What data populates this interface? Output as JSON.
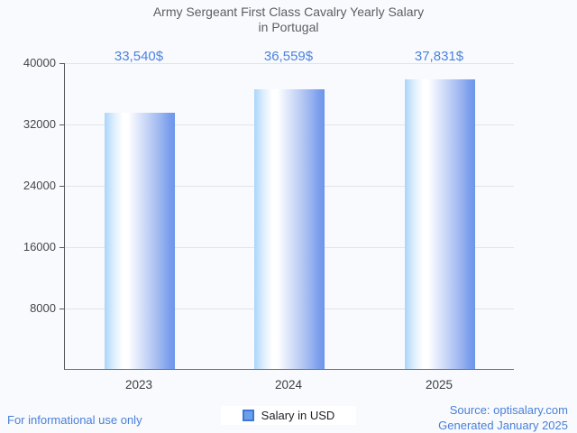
{
  "header": {
    "title_line1": "Army Sergeant First Class Cavalry Yearly Salary",
    "title_line2": "in Portugal"
  },
  "chart_data": {
    "type": "bar",
    "title": "Army Sergeant First Class Cavalry Yearly Salary in Portugal",
    "categories": [
      "2023",
      "2024",
      "2025"
    ],
    "values": [
      33540,
      36559,
      37831
    ],
    "value_labels": [
      "33,540$",
      "36,559$",
      "37,831$"
    ],
    "series_name": "Salary in USD",
    "xlabel": "",
    "ylabel": "",
    "ylim": [
      0,
      40000
    ],
    "yticks": [
      "40000",
      "32000",
      "24000",
      "16000",
      "8000"
    ],
    "grid": true,
    "legend_position": "bottom-center"
  },
  "legend": {
    "label": "Salary in USD"
  },
  "footer": {
    "disclaimer": "For informational use only",
    "source": "Source: optisalary.com",
    "generated": "Generated January 2025"
  },
  "colors": {
    "background": "#f8fafd",
    "bar_gradient_left": "#abd5fa",
    "bar_gradient_middle": "#ffffff",
    "bar_gradient_right": "#6d96eb",
    "value_label_text": "#4d82e0",
    "footer_text": "#4a80d9",
    "title_text": "#5c5e62",
    "axis_label_text": "#44474c",
    "gridline": "#e2e4e8",
    "legend_marker_fill": "#6d9eeb",
    "legend_marker_border": "#3c78d8"
  }
}
